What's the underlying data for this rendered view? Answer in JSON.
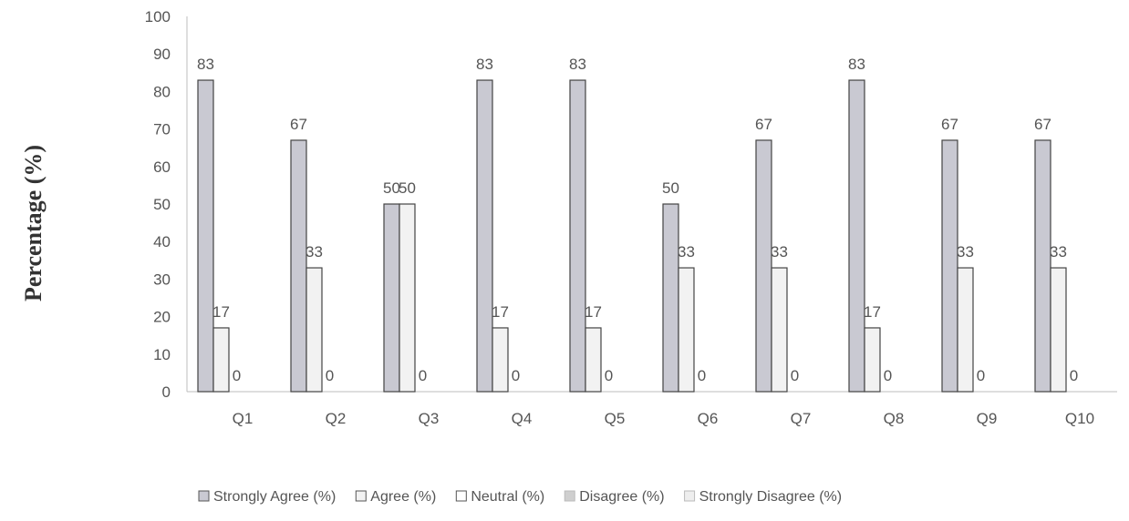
{
  "chart_data": {
    "type": "bar",
    "ylabel": "Percentage (%)",
    "xlabel": "",
    "ylim": [
      0,
      100
    ],
    "yticks": [
      0,
      10,
      20,
      30,
      40,
      50,
      60,
      70,
      80,
      90,
      100
    ],
    "grid": false,
    "legend_position": "bottom",
    "categories": [
      "Q1",
      "Q2",
      "Q3",
      "Q4",
      "Q5",
      "Q6",
      "Q7",
      "Q8",
      "Q9",
      "Q10"
    ],
    "series": [
      {
        "name": "Strongly Agree (%)",
        "values": [
          83,
          67,
          50,
          83,
          83,
          50,
          67,
          83,
          67,
          67
        ],
        "color": "#c9c9d2"
      },
      {
        "name": "Agree  (%)",
        "values": [
          17,
          33,
          50,
          17,
          17,
          33,
          33,
          17,
          33,
          33
        ],
        "color": "#f2f2f2"
      },
      {
        "name": "Neutral  (%)",
        "values": [
          0,
          0,
          0,
          0,
          0,
          0,
          0,
          0,
          0,
          0
        ],
        "color": "#ffffff"
      },
      {
        "name": "Disagree (%)",
        "values": [
          0,
          0,
          0,
          0,
          0,
          0,
          0,
          0,
          0,
          0
        ],
        "color": "#cfcfcf"
      },
      {
        "name": "Strongly Disagree (%)",
        "values": [
          0,
          0,
          0,
          0,
          0,
          0,
          0,
          0,
          0,
          0
        ],
        "color": "#eeeeee"
      }
    ],
    "data_labels_series": [
      0,
      1,
      2
    ]
  }
}
